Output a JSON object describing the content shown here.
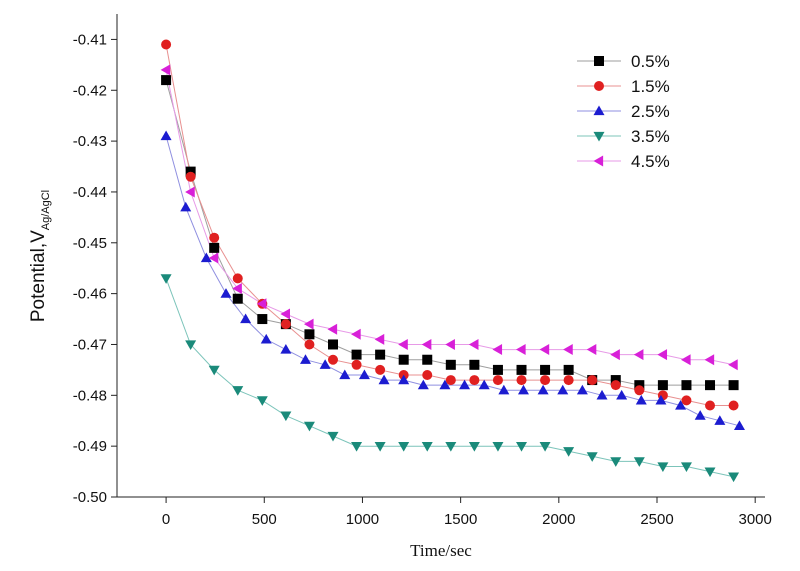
{
  "chart_data": {
    "type": "scatter",
    "title": "",
    "xlabel": "Time/sec",
    "ylabel": {
      "main": "Potential,V",
      "subscript": "Ag/AgCl"
    },
    "xlim": [
      -250,
      3050
    ],
    "ylim": [
      -0.5,
      -0.405
    ],
    "x_ticks": [
      0,
      500,
      1000,
      1500,
      2000,
      2500,
      3000
    ],
    "x_tick_labels": [
      "0",
      "500",
      "1000",
      "1500",
      "2000",
      "2500",
      "3000"
    ],
    "y_ticks": [
      -0.41,
      -0.42,
      -0.43,
      -0.44,
      -0.45,
      -0.46,
      -0.47,
      -0.48,
      -0.49,
      -0.5
    ],
    "y_tick_labels": [
      "-0.41",
      "-0.42",
      "-0.43",
      "-0.44",
      "-0.45",
      "-0.46",
      "-0.47",
      "-0.48",
      "-0.49",
      "-0.50"
    ],
    "legend_position": "top-right",
    "grid": false,
    "series": [
      {
        "name": "0.5%",
        "marker": "square",
        "color": "#000000",
        "line_color": "#9e9e9e",
        "x": [
          0,
          125,
          245,
          365,
          490,
          610,
          730,
          850,
          970,
          1090,
          1210,
          1330,
          1450,
          1570,
          1690,
          1810,
          1930,
          2050,
          2170,
          2290,
          2410,
          2530,
          2650,
          2770,
          2890
        ],
        "y": [
          -0.418,
          -0.436,
          -0.451,
          -0.461,
          -0.465,
          -0.466,
          -0.468,
          -0.47,
          -0.472,
          -0.472,
          -0.473,
          -0.473,
          -0.474,
          -0.474,
          -0.475,
          -0.475,
          -0.475,
          -0.475,
          -0.477,
          -0.477,
          -0.478,
          -0.478,
          -0.478,
          -0.478,
          -0.478
        ]
      },
      {
        "name": "1.5%",
        "marker": "circle",
        "color": "#e02020",
        "line_color": "#e89090",
        "x": [
          0,
          125,
          245,
          365,
          490,
          610,
          730,
          850,
          970,
          1090,
          1210,
          1330,
          1450,
          1570,
          1690,
          1810,
          1930,
          2050,
          2170,
          2290,
          2410,
          2530,
          2650,
          2770,
          2890
        ],
        "y": [
          -0.411,
          -0.437,
          -0.449,
          -0.457,
          -0.462,
          -0.466,
          -0.47,
          -0.473,
          -0.474,
          -0.475,
          -0.476,
          -0.476,
          -0.477,
          -0.477,
          -0.477,
          -0.477,
          -0.477,
          -0.477,
          -0.477,
          -0.478,
          -0.479,
          -0.48,
          -0.481,
          -0.482,
          -0.482
        ]
      },
      {
        "name": "2.5%",
        "marker": "triangle-up",
        "color": "#1c1cd0",
        "line_color": "#8f8fe0",
        "x": [
          0,
          100,
          205,
          305,
          405,
          510,
          610,
          710,
          810,
          910,
          1010,
          1110,
          1210,
          1310,
          1420,
          1520,
          1620,
          1720,
          1820,
          1920,
          2020,
          2120,
          2220,
          2320,
          2420,
          2520,
          2620,
          2720,
          2820,
          2920
        ],
        "y": [
          -0.429,
          -0.443,
          -0.453,
          -0.46,
          -0.465,
          -0.469,
          -0.471,
          -0.473,
          -0.474,
          -0.476,
          -0.476,
          -0.477,
          -0.477,
          -0.478,
          -0.478,
          -0.478,
          -0.478,
          -0.479,
          -0.479,
          -0.479,
          -0.479,
          -0.479,
          -0.48,
          -0.48,
          -0.481,
          -0.481,
          -0.482,
          -0.484,
          -0.485,
          -0.486
        ]
      },
      {
        "name": "3.5%",
        "marker": "triangle-down",
        "color": "#1a8a7a",
        "line_color": "#7cc4ba",
        "x": [
          0,
          125,
          245,
          365,
          490,
          610,
          730,
          850,
          970,
          1090,
          1210,
          1330,
          1450,
          1570,
          1690,
          1810,
          1930,
          2050,
          2170,
          2290,
          2410,
          2530,
          2650,
          2770,
          2890
        ],
        "y": [
          -0.457,
          -0.47,
          -0.475,
          -0.479,
          -0.481,
          -0.484,
          -0.486,
          -0.488,
          -0.49,
          -0.49,
          -0.49,
          -0.49,
          -0.49,
          -0.49,
          -0.49,
          -0.49,
          -0.49,
          -0.491,
          -0.492,
          -0.493,
          -0.493,
          -0.494,
          -0.494,
          -0.495,
          -0.496
        ]
      },
      {
        "name": "4.5%",
        "marker": "triangle-left",
        "color": "#d820d8",
        "line_color": "#e79ae7",
        "x": [
          0,
          125,
          245,
          365,
          490,
          610,
          730,
          850,
          970,
          1090,
          1210,
          1330,
          1450,
          1570,
          1690,
          1810,
          1930,
          2050,
          2170,
          2290,
          2410,
          2530,
          2650,
          2770,
          2890
        ],
        "y": [
          -0.416,
          -0.44,
          -0.453,
          -0.459,
          -0.462,
          -0.464,
          -0.466,
          -0.467,
          -0.468,
          -0.469,
          -0.47,
          -0.47,
          -0.47,
          -0.47,
          -0.471,
          -0.471,
          -0.471,
          -0.471,
          -0.471,
          -0.472,
          -0.472,
          -0.472,
          -0.473,
          -0.473,
          -0.474
        ]
      }
    ]
  }
}
